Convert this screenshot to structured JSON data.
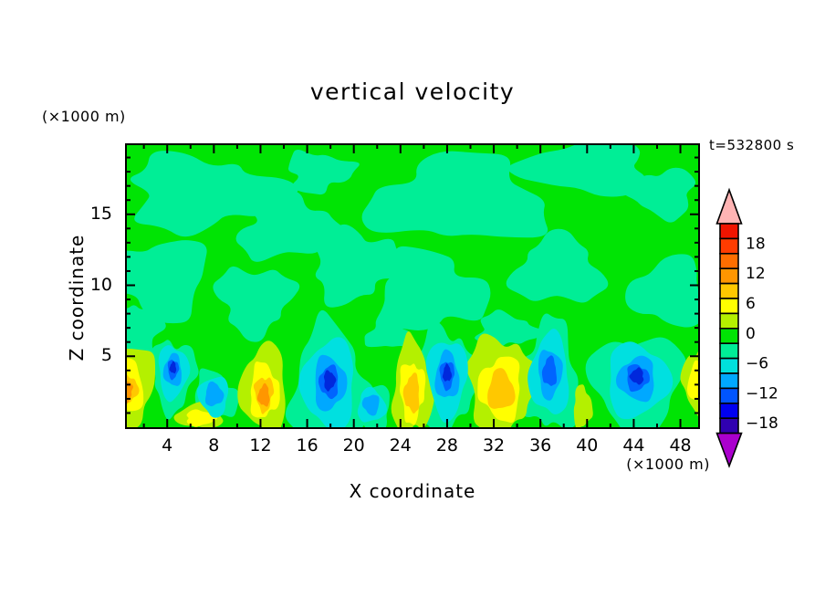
{
  "title": "vertical velocity",
  "time_label": "t=532800 s",
  "x_axis": {
    "title": "X coordinate",
    "units_label": "(×1000 m)",
    "major_ticks": [
      4,
      8,
      12,
      16,
      20,
      24,
      28,
      32,
      36,
      40,
      44,
      48
    ],
    "minor_step": 2,
    "range": [
      0.4,
      49.7
    ]
  },
  "z_axis": {
    "title": "Z coordinate",
    "units_label": "(×1000 m)",
    "major_ticks": [
      5,
      10,
      15
    ],
    "minor_step": 1,
    "range": [
      0.2,
      20.0
    ]
  },
  "colorbar": {
    "tick_labels": [
      "18",
      "12",
      "6",
      "0",
      "−6",
      "−12",
      "−18"
    ],
    "cell_colors": [
      "#f01400",
      "#ff3c00",
      "#ff6e00",
      "#ff9600",
      "#ffc800",
      "#ffff00",
      "#b4f000",
      "#00e404",
      "#00ee96",
      "#00e0dc",
      "#00a8ff",
      "#0055ff",
      "#0000f0",
      "#3000b0"
    ],
    "over_arrow_color": "#ffb4b4",
    "under_arrow_color": "#aa00cd"
  },
  "palette": {
    "green": "#00e404",
    "seafoam": "#00ee96",
    "cyan": "#00e0e0",
    "skyblue": "#00a8ff",
    "dodger": "#0064ff",
    "deepblue": "#0028dc",
    "greenyellow": "#b4f000",
    "yellow": "#ffff00",
    "gold": "#ffc800",
    "orange": "#ff9600"
  },
  "chart_data": {
    "type": "heatmap",
    "title": "vertical velocity",
    "xlabel": "X coordinate (×1000 m)",
    "ylabel": "Z coordinate (×1000 m)",
    "xlim": [
      0,
      50
    ],
    "ylim": [
      0,
      20
    ],
    "time": "t=532800 s",
    "units": "m/s-scaled contour levels",
    "contour_interval": 3,
    "colorbar_range": [
      -21,
      21
    ],
    "colorbar_labeled_levels": [
      18,
      12,
      6,
      0,
      -6,
      -12,
      -18
    ],
    "background_value_range": [
      -3,
      3
    ],
    "description": "Convective boundary layer below z≈6 km with alternating updraft (yellow/orange) and downdraft (cyan/blue) cells; weakly negative (seafoam) patches aloft on near-zero (green) background.",
    "updrafts": [
      {
        "x": 0.4,
        "z": 3.0,
        "peak": 12,
        "rx": 2.6,
        "rz": 2.9
      },
      {
        "x": 12.3,
        "z": 2.7,
        "peak": 12,
        "rx": 2.0,
        "rz": 3.1
      },
      {
        "x": 25.0,
        "z": 2.7,
        "peak": 9,
        "rx": 1.7,
        "rz": 3.4
      },
      {
        "x": 32.6,
        "z": 2.9,
        "peak": 10,
        "rx": 2.9,
        "rz": 3.6
      },
      {
        "x": 49.4,
        "z": 3.3,
        "peak": 6,
        "rx": 1.2,
        "rz": 2.2
      },
      {
        "x": 6.8,
        "z": 0.8,
        "peak": 5,
        "rx": 2.0,
        "rz": 0.9
      },
      {
        "x": 39.6,
        "z": 1.4,
        "peak": 4,
        "rx": 0.8,
        "rz": 1.5
      }
    ],
    "downdrafts": [
      {
        "x": 4.5,
        "z": 3.9,
        "peak": -13,
        "rx": 1.3,
        "rz": 1.9
      },
      {
        "x": 17.9,
        "z": 3.0,
        "peak": -16,
        "rx": 2.3,
        "rz": 3.2
      },
      {
        "x": 21.5,
        "z": 1.5,
        "peak": -7,
        "rx": 1.2,
        "rz": 1.2
      },
      {
        "x": 28.0,
        "z": 3.5,
        "peak": -13,
        "rx": 1.7,
        "rz": 2.8
      },
      {
        "x": 36.8,
        "z": 3.7,
        "peak": -9,
        "rx": 1.7,
        "rz": 2.9
      },
      {
        "x": 44.3,
        "z": 3.3,
        "peak": -13,
        "rx": 2.7,
        "rz": 2.6
      },
      {
        "x": 8.0,
        "z": 2.2,
        "peak": -5,
        "rx": 1.3,
        "rz": 1.4
      }
    ],
    "weak_negative_patches": [
      {
        "x": 7.0,
        "z": 16.5,
        "rx": 6.5,
        "rz": 2.6
      },
      {
        "x": 14.5,
        "z": 14.0,
        "rx": 4.5,
        "rz": 2.2
      },
      {
        "x": 29.0,
        "z": 16.0,
        "rx": 7.5,
        "rz": 3.0
      },
      {
        "x": 40.0,
        "z": 18.3,
        "rx": 5.5,
        "rz": 1.9
      },
      {
        "x": 3.5,
        "z": 10.5,
        "rx": 4.0,
        "rz": 2.8
      },
      {
        "x": 11.5,
        "z": 9.0,
        "rx": 3.2,
        "rz": 2.4
      },
      {
        "x": 20.0,
        "z": 11.5,
        "rx": 3.8,
        "rz": 2.6
      },
      {
        "x": 26.5,
        "z": 9.5,
        "rx": 4.6,
        "rz": 2.8
      },
      {
        "x": 37.5,
        "z": 11.0,
        "rx": 3.8,
        "rz": 2.4
      },
      {
        "x": 47.0,
        "z": 9.5,
        "rx": 3.2,
        "rz": 2.4
      },
      {
        "x": 46.5,
        "z": 16.5,
        "rx": 2.8,
        "rz": 1.7
      },
      {
        "x": 1.5,
        "z": 7.0,
        "rx": 2.2,
        "rz": 1.8
      },
      {
        "x": 17.0,
        "z": 18.0,
        "rx": 2.8,
        "rz": 1.4
      },
      {
        "x": 33.0,
        "z": 6.8,
        "rx": 2.6,
        "rz": 1.2
      },
      {
        "x": 23.0,
        "z": 6.5,
        "rx": 2.0,
        "rz": 1.0
      }
    ]
  }
}
